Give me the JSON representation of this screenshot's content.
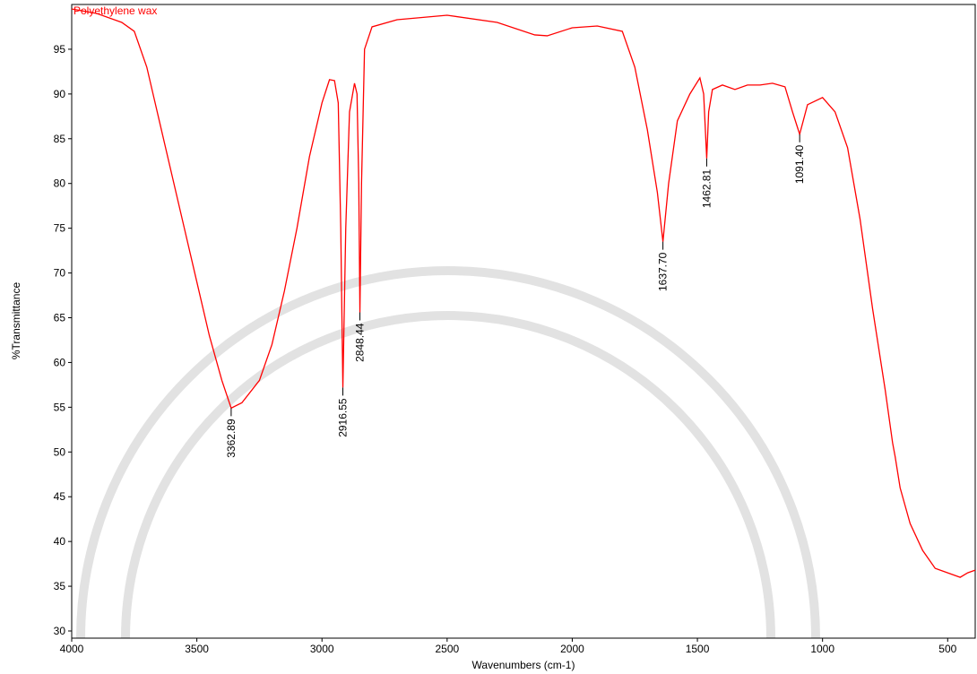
{
  "chart_data": {
    "type": "line",
    "x_label": "Wavenumbers (cm-1)",
    "y_label": "%Transmittance",
    "xlim": [
      4000,
      390
    ],
    "ylim": [
      29.2,
      100
    ],
    "xticks": [
      4000,
      3500,
      3000,
      2500,
      2000,
      1500,
      1000,
      500
    ],
    "yticks": [
      30,
      35,
      40,
      45,
      50,
      55,
      60,
      65,
      70,
      75,
      80,
      85,
      90,
      95
    ],
    "x": [
      4000,
      3900,
      3800,
      3750,
      3700,
      3650,
      3600,
      3550,
      3500,
      3450,
      3400,
      3362.89,
      3320,
      3250,
      3200,
      3150,
      3100,
      3050,
      3000,
      2970,
      2950,
      2935,
      2925,
      2916.55,
      2905,
      2890,
      2870,
      2860,
      2853,
      2848.44,
      2842,
      2830,
      2800,
      2700,
      2500,
      2300,
      2150,
      2100,
      2000,
      1900,
      1800,
      1750,
      1700,
      1660,
      1637.7,
      1615,
      1580,
      1530,
      1490,
      1475,
      1462.81,
      1455,
      1440,
      1400,
      1350,
      1300,
      1250,
      1200,
      1150,
      1120,
      1091.4,
      1060,
      1000,
      950,
      900,
      850,
      800,
      750,
      720,
      710,
      690,
      650,
      600,
      550,
      500,
      450,
      420,
      390
    ],
    "series": [
      {
        "name": "Polyethylene wax",
        "color": "#ff0000",
        "values": [
          99.5,
          99,
          98,
          97,
          93,
          87,
          81,
          75,
          69,
          63,
          58,
          54.9,
          55.5,
          58,
          62,
          68,
          75,
          83,
          89,
          91.6,
          91.5,
          89,
          75,
          57.2,
          75,
          88,
          91.2,
          90,
          80,
          65.6,
          80,
          95,
          97.5,
          98.3,
          98.8,
          98,
          96.6,
          96.5,
          97.4,
          97.6,
          97,
          93,
          86,
          79,
          73.5,
          80,
          87,
          90,
          91.8,
          90,
          82.8,
          88,
          90.5,
          91,
          90.5,
          91,
          91,
          91.2,
          90.8,
          88,
          85.5,
          88.8,
          89.6,
          88,
          84,
          76,
          66,
          57,
          51,
          49.5,
          46,
          42,
          39,
          37,
          36.5,
          36,
          36.5,
          36.8
        ]
      }
    ],
    "peaks": [
      {
        "x": 3362.89,
        "y": 54.9,
        "label": "3362.89"
      },
      {
        "x": 2916.55,
        "y": 57.2,
        "label": "2916.55"
      },
      {
        "x": 2848.44,
        "y": 65.6,
        "label": "2848.44"
      },
      {
        "x": 1637.7,
        "y": 73.5,
        "label": "1637.70"
      },
      {
        "x": 1462.81,
        "y": 82.8,
        "label": "1462.81"
      },
      {
        "x": 1091.4,
        "y": 85.5,
        "label": "1091.40"
      }
    ]
  }
}
